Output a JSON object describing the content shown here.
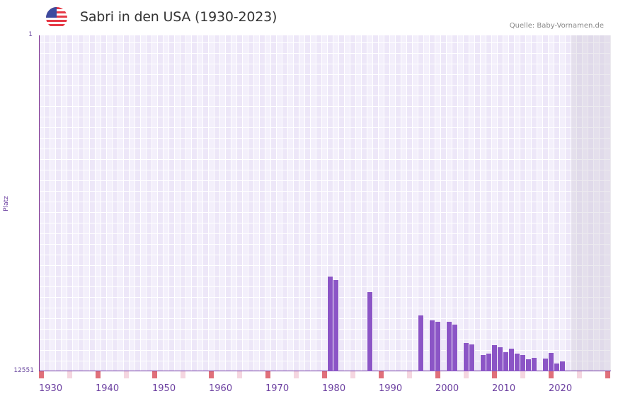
{
  "header": {
    "title": "Sabri in den USA (1930-2023)",
    "source": "Quelle: Baby-Vornamen.de",
    "flag_icon": "us-flag-icon"
  },
  "axis": {
    "y_top_label": "1",
    "y_bottom_label": "12551",
    "y_title": "Platz",
    "x_ticks": [
      "1930",
      "1940",
      "1950",
      "1960",
      "1970",
      "1980",
      "1990",
      "2000",
      "2010",
      "2020"
    ]
  },
  "colors": {
    "bar": "#8b55c6",
    "decade_marker": "#e0707a",
    "half_decade_marker": "#f5d6e0",
    "axis": "#6b2fa0",
    "plot_bg": "#f3effb"
  },
  "chart_data": {
    "type": "bar",
    "title": "Sabri in den USA (1930-2023)",
    "xlabel": "",
    "ylabel": "Platz",
    "y_reversed": true,
    "ylim": [
      1,
      12551
    ],
    "xlim": [
      1930,
      2030
    ],
    "grid": true,
    "legend": null,
    "categories": [
      1981,
      1982,
      1988,
      1997,
      1999,
      2000,
      2002,
      2003,
      2005,
      2006,
      2008,
      2009,
      2010,
      2011,
      2012,
      2013,
      2014,
      2015,
      2016,
      2017,
      2019,
      2020,
      2021,
      2022
    ],
    "values": [
      9017,
      9149,
      9598,
      10470,
      10655,
      10708,
      10708,
      10813,
      11500,
      11553,
      11950,
      11897,
      11580,
      11659,
      11844,
      11712,
      11897,
      11950,
      12108,
      12055,
      12082,
      11870,
      12267,
      12188
    ],
    "annotations": [
      "Quelle: Baby-Vornamen.de"
    ]
  }
}
